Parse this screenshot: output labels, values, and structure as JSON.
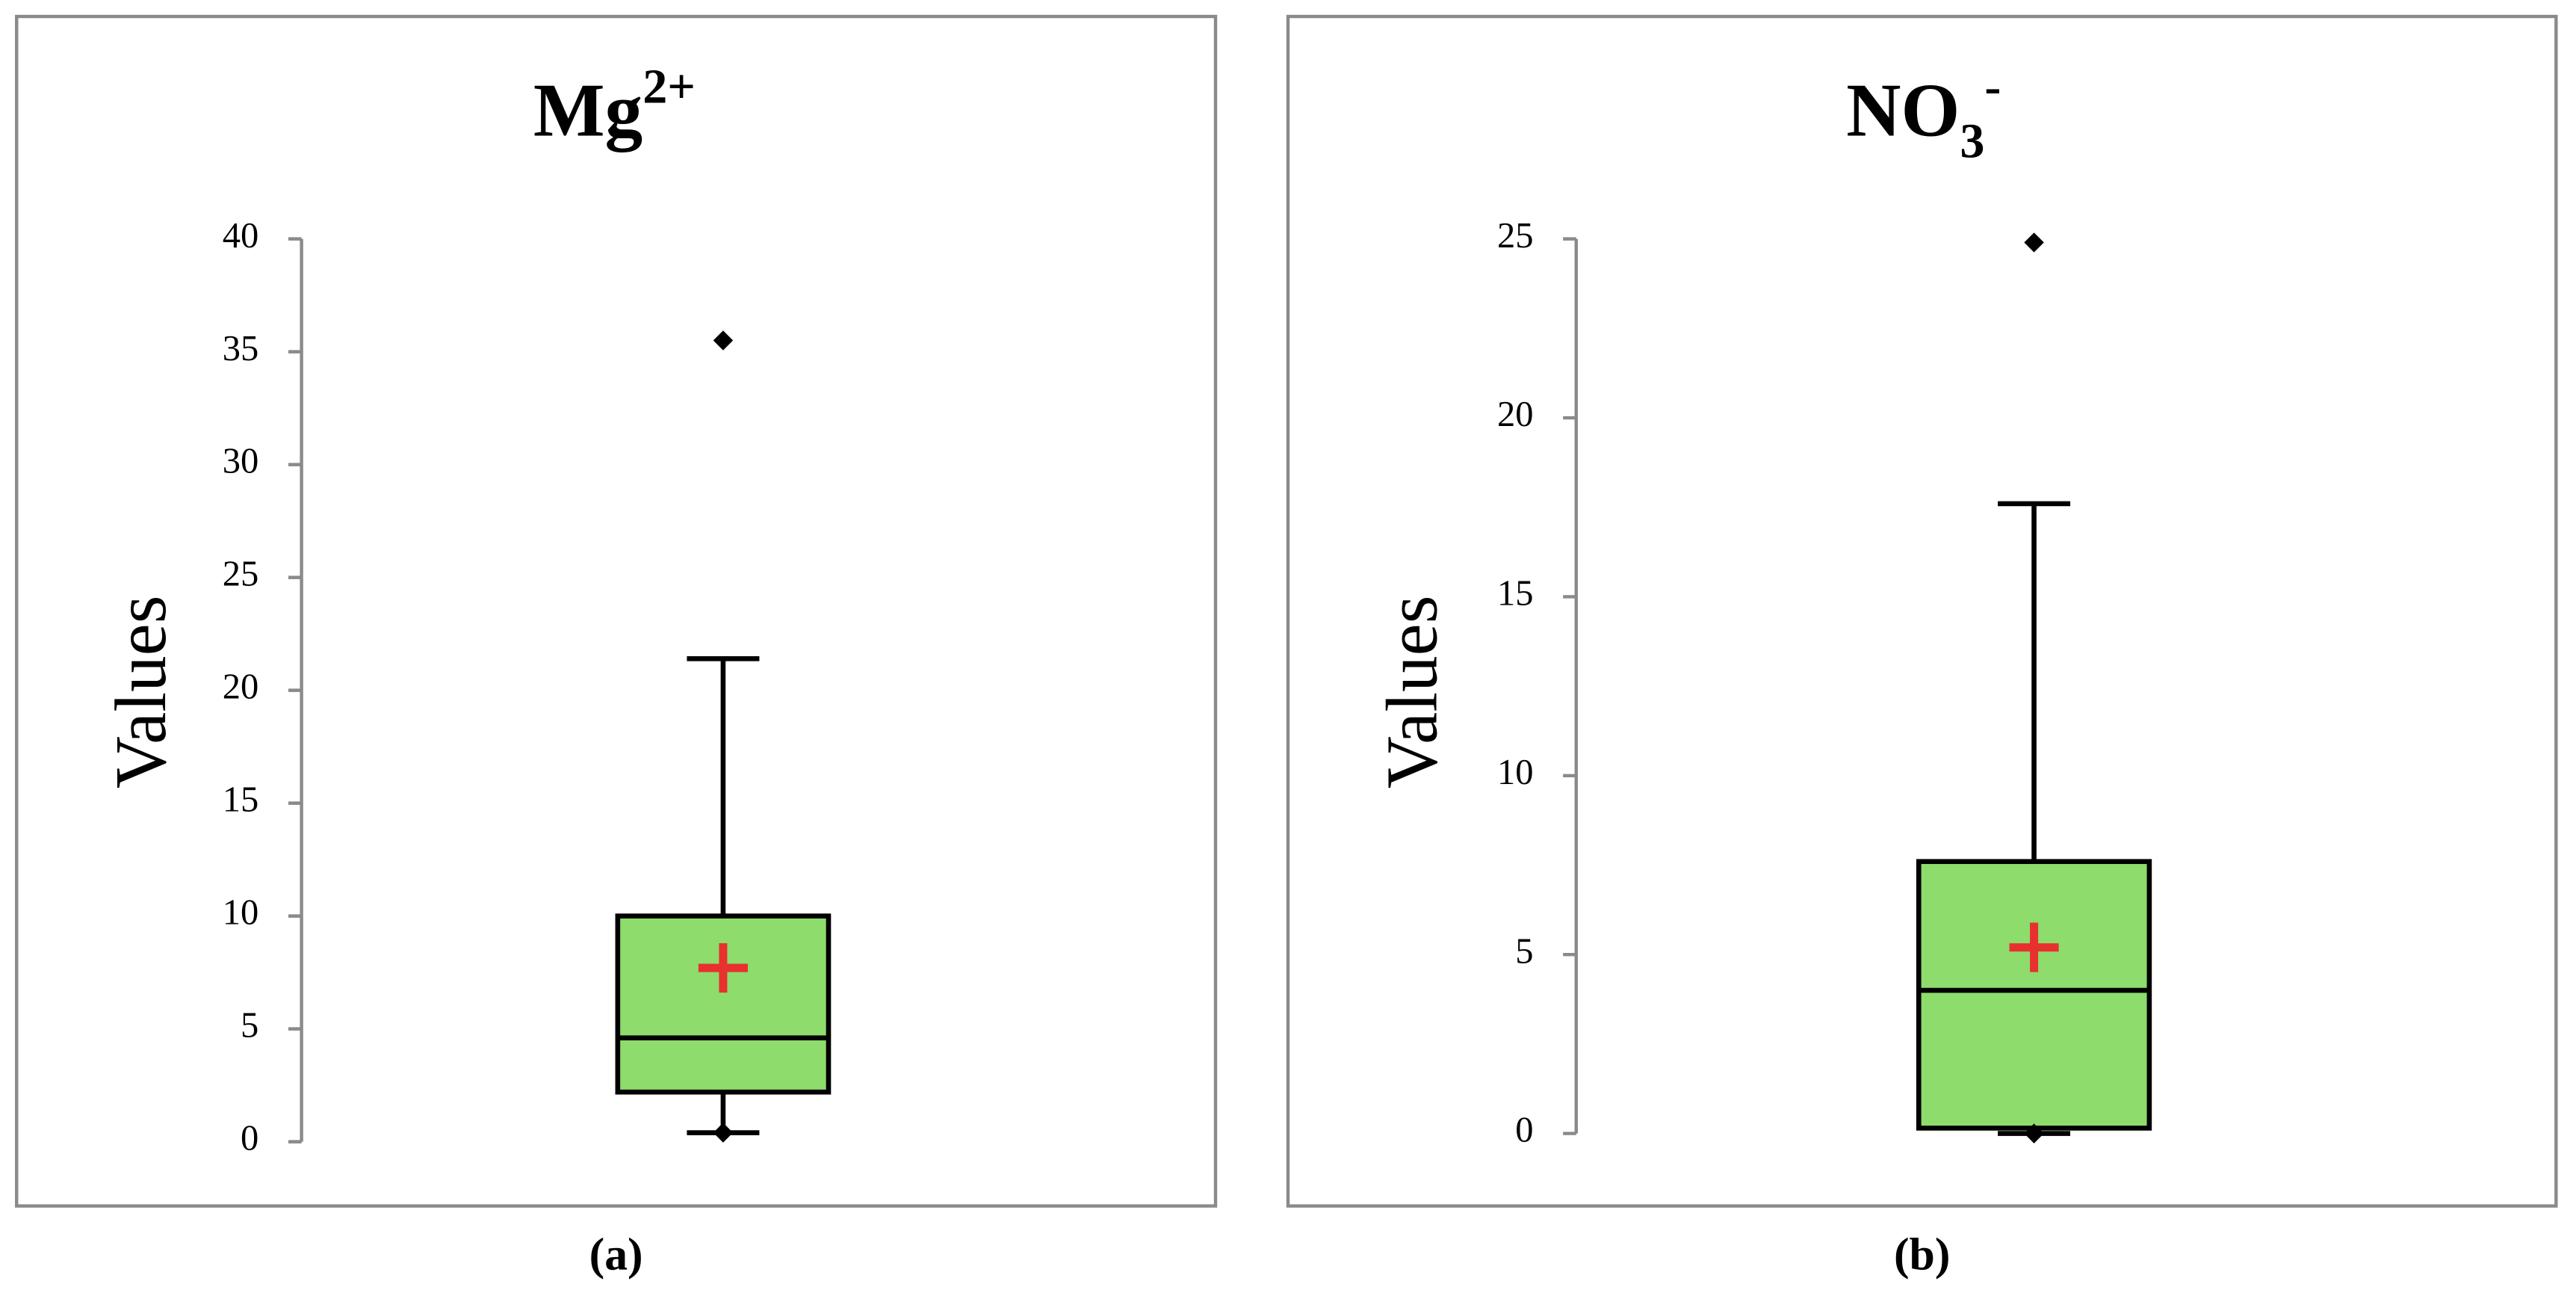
{
  "chart_data": [
    {
      "type": "box",
      "title": [
        {
          "text": "Mg"
        },
        {
          "text": "2+",
          "shift": "super"
        }
      ],
      "caption": "(a)",
      "ylabel": "Values",
      "ylim": [
        0,
        40
      ],
      "yticks": [
        0,
        5,
        10,
        15,
        20,
        25,
        30,
        35,
        40
      ],
      "whisker_low": 0.4,
      "q1": 2.2,
      "median": 4.6,
      "q3": 10.0,
      "whisker_high": 21.4,
      "mean": 7.7,
      "points": [
        0.4,
        35.5
      ],
      "color": "#8ddc6c",
      "mean_color": "#e8312f"
    },
    {
      "type": "box",
      "title": [
        {
          "text": "NO"
        },
        {
          "text": "3",
          "shift": "sub"
        },
        {
          "text": "-",
          "shift": "super"
        }
      ],
      "caption": "(b)",
      "ylabel": "Values",
      "ylim": [
        0,
        25
      ],
      "yticks": [
        0,
        5,
        10,
        15,
        20,
        25
      ],
      "whisker_low": 0,
      "q1": 0.15,
      "median": 4.0,
      "q3": 7.6,
      "whisker_high": 17.6,
      "mean": 5.2,
      "points": [
        0,
        24.9
      ],
      "color": "#8ddc6c",
      "mean_color": "#e8312f"
    }
  ]
}
